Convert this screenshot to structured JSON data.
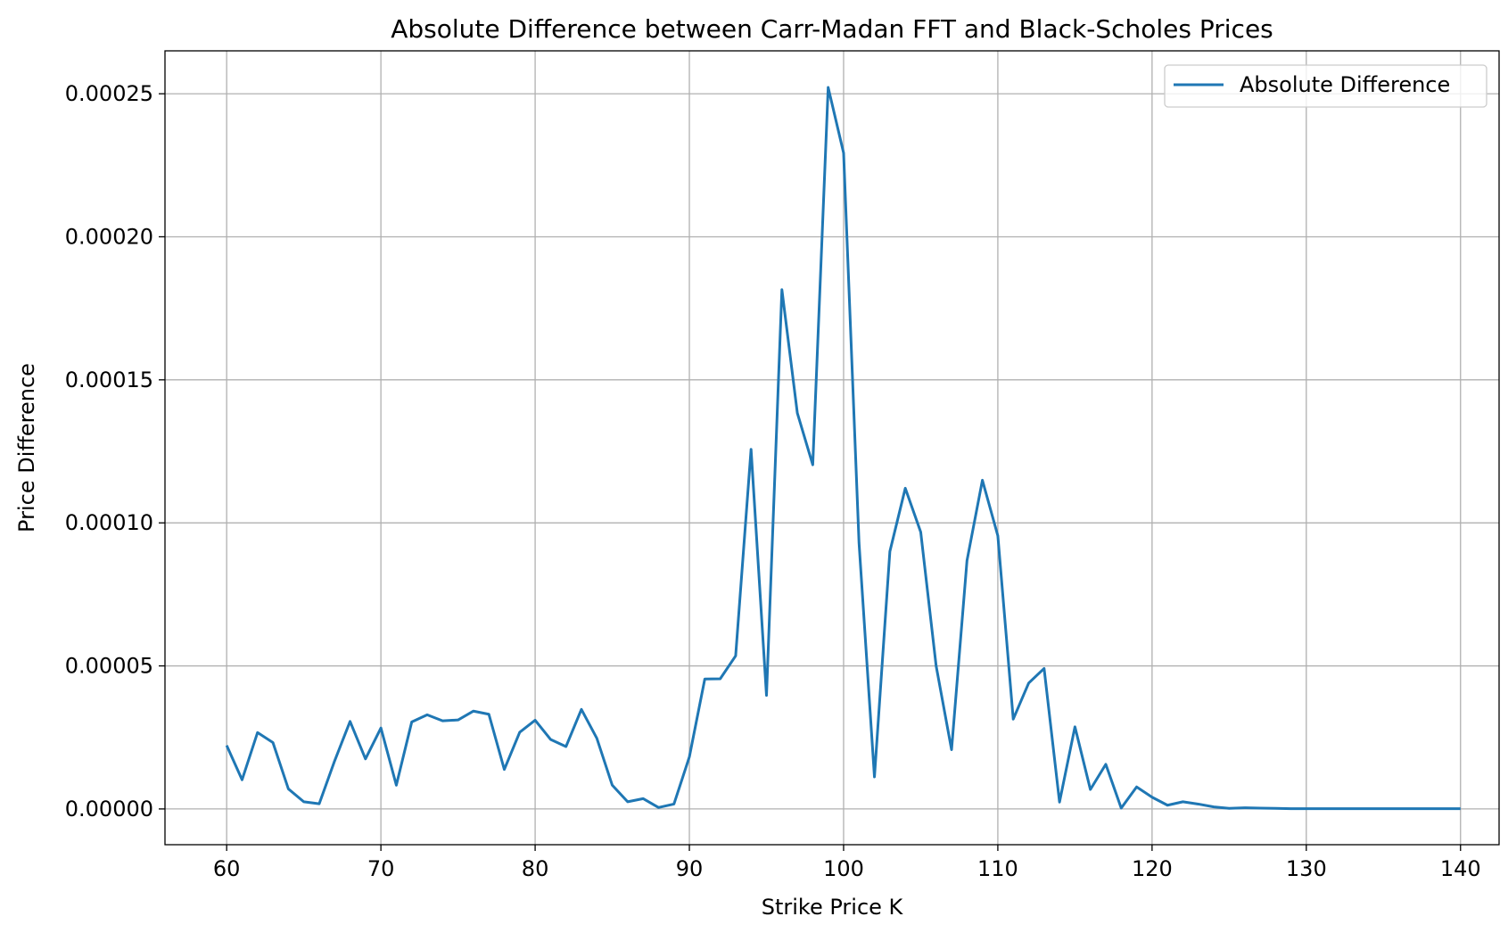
{
  "chart_data": {
    "type": "line",
    "title": "Absolute Difference between Carr-Madan FFT and Black-Scholes Prices",
    "xlabel": "Strike Price K",
    "ylabel": "Price Difference",
    "xlim": [
      56,
      142.5
    ],
    "ylim": [
      -1.25e-05,
      0.000265
    ],
    "xticks": [
      60,
      70,
      80,
      90,
      100,
      110,
      120,
      130,
      140
    ],
    "xtick_labels": [
      "60",
      "70",
      "80",
      "90",
      "100",
      "110",
      "120",
      "130",
      "140"
    ],
    "yticks": [
      0,
      5e-05,
      0.0001,
      0.00015,
      0.0002,
      0.00025
    ],
    "ytick_labels": [
      "0.00000",
      "0.00005",
      "0.00010",
      "0.00015",
      "0.00020",
      "0.00025"
    ],
    "grid": true,
    "legend_position": "top-right",
    "series": [
      {
        "name": "Absolute Difference",
        "color": "#1f77b4",
        "x": [
          60,
          61,
          62,
          63,
          64,
          65,
          66,
          67,
          68,
          69,
          70,
          71,
          72,
          73,
          74,
          75,
          76,
          77,
          78,
          79,
          80,
          81,
          82,
          83,
          84,
          85,
          86,
          87,
          88,
          89,
          90,
          91,
          92,
          93,
          94,
          95,
          96,
          97,
          98,
          99,
          100,
          101,
          102,
          103,
          104,
          105,
          106,
          107,
          108,
          109,
          110,
          111,
          112,
          113,
          114,
          115,
          116,
          117,
          118,
          119,
          120,
          121,
          122,
          123,
          124,
          125,
          126,
          127,
          128,
          129,
          130,
          131,
          132,
          133,
          134,
          135,
          136,
          137,
          138,
          139,
          140
        ],
        "y": [
          2.22e-05,
          1.02e-05,
          2.67e-05,
          2.32e-05,
          7e-06,
          2.5e-06,
          1.8e-06,
          1.68e-05,
          3.06e-05,
          1.75e-05,
          2.83e-05,
          8.3e-06,
          3.04e-05,
          3.29e-05,
          3.08e-05,
          3.11e-05,
          3.42e-05,
          3.31e-05,
          1.38e-05,
          2.68e-05,
          3.1e-05,
          2.43e-05,
          2.18e-05,
          3.48e-05,
          2.47e-05,
          8.3e-06,
          2.5e-06,
          3.6e-06,
          5e-07,
          1.7e-06,
          1.82e-05,
          4.54e-05,
          4.55e-05,
          5.35e-05,
          0.0001257,
          3.97e-05,
          0.0001815,
          0.0001384,
          0.0001203,
          0.0002522,
          0.0002293,
          9.3e-05,
          1.12e-05,
          9e-05,
          0.0001121,
          9.68e-05,
          5e-05,
          2.07e-05,
          8.68e-05,
          0.0001149,
          9.55e-05,
          3.14e-05,
          4.4e-05,
          4.91e-05,
          2.4e-06,
          2.87e-05,
          6.8e-06,
          1.56e-05,
          3e-07,
          7.7e-06,
          4.1e-06,
          1.3e-06,
          2.5e-06,
          1.7e-06,
          7e-07,
          2e-07,
          4e-07,
          3e-07,
          2e-07,
          1e-07,
          1e-07,
          1e-07,
          1e-07,
          1e-07,
          1e-07,
          1e-07,
          1e-07,
          1e-07,
          1e-07,
          1e-07,
          1e-07
        ]
      }
    ]
  }
}
